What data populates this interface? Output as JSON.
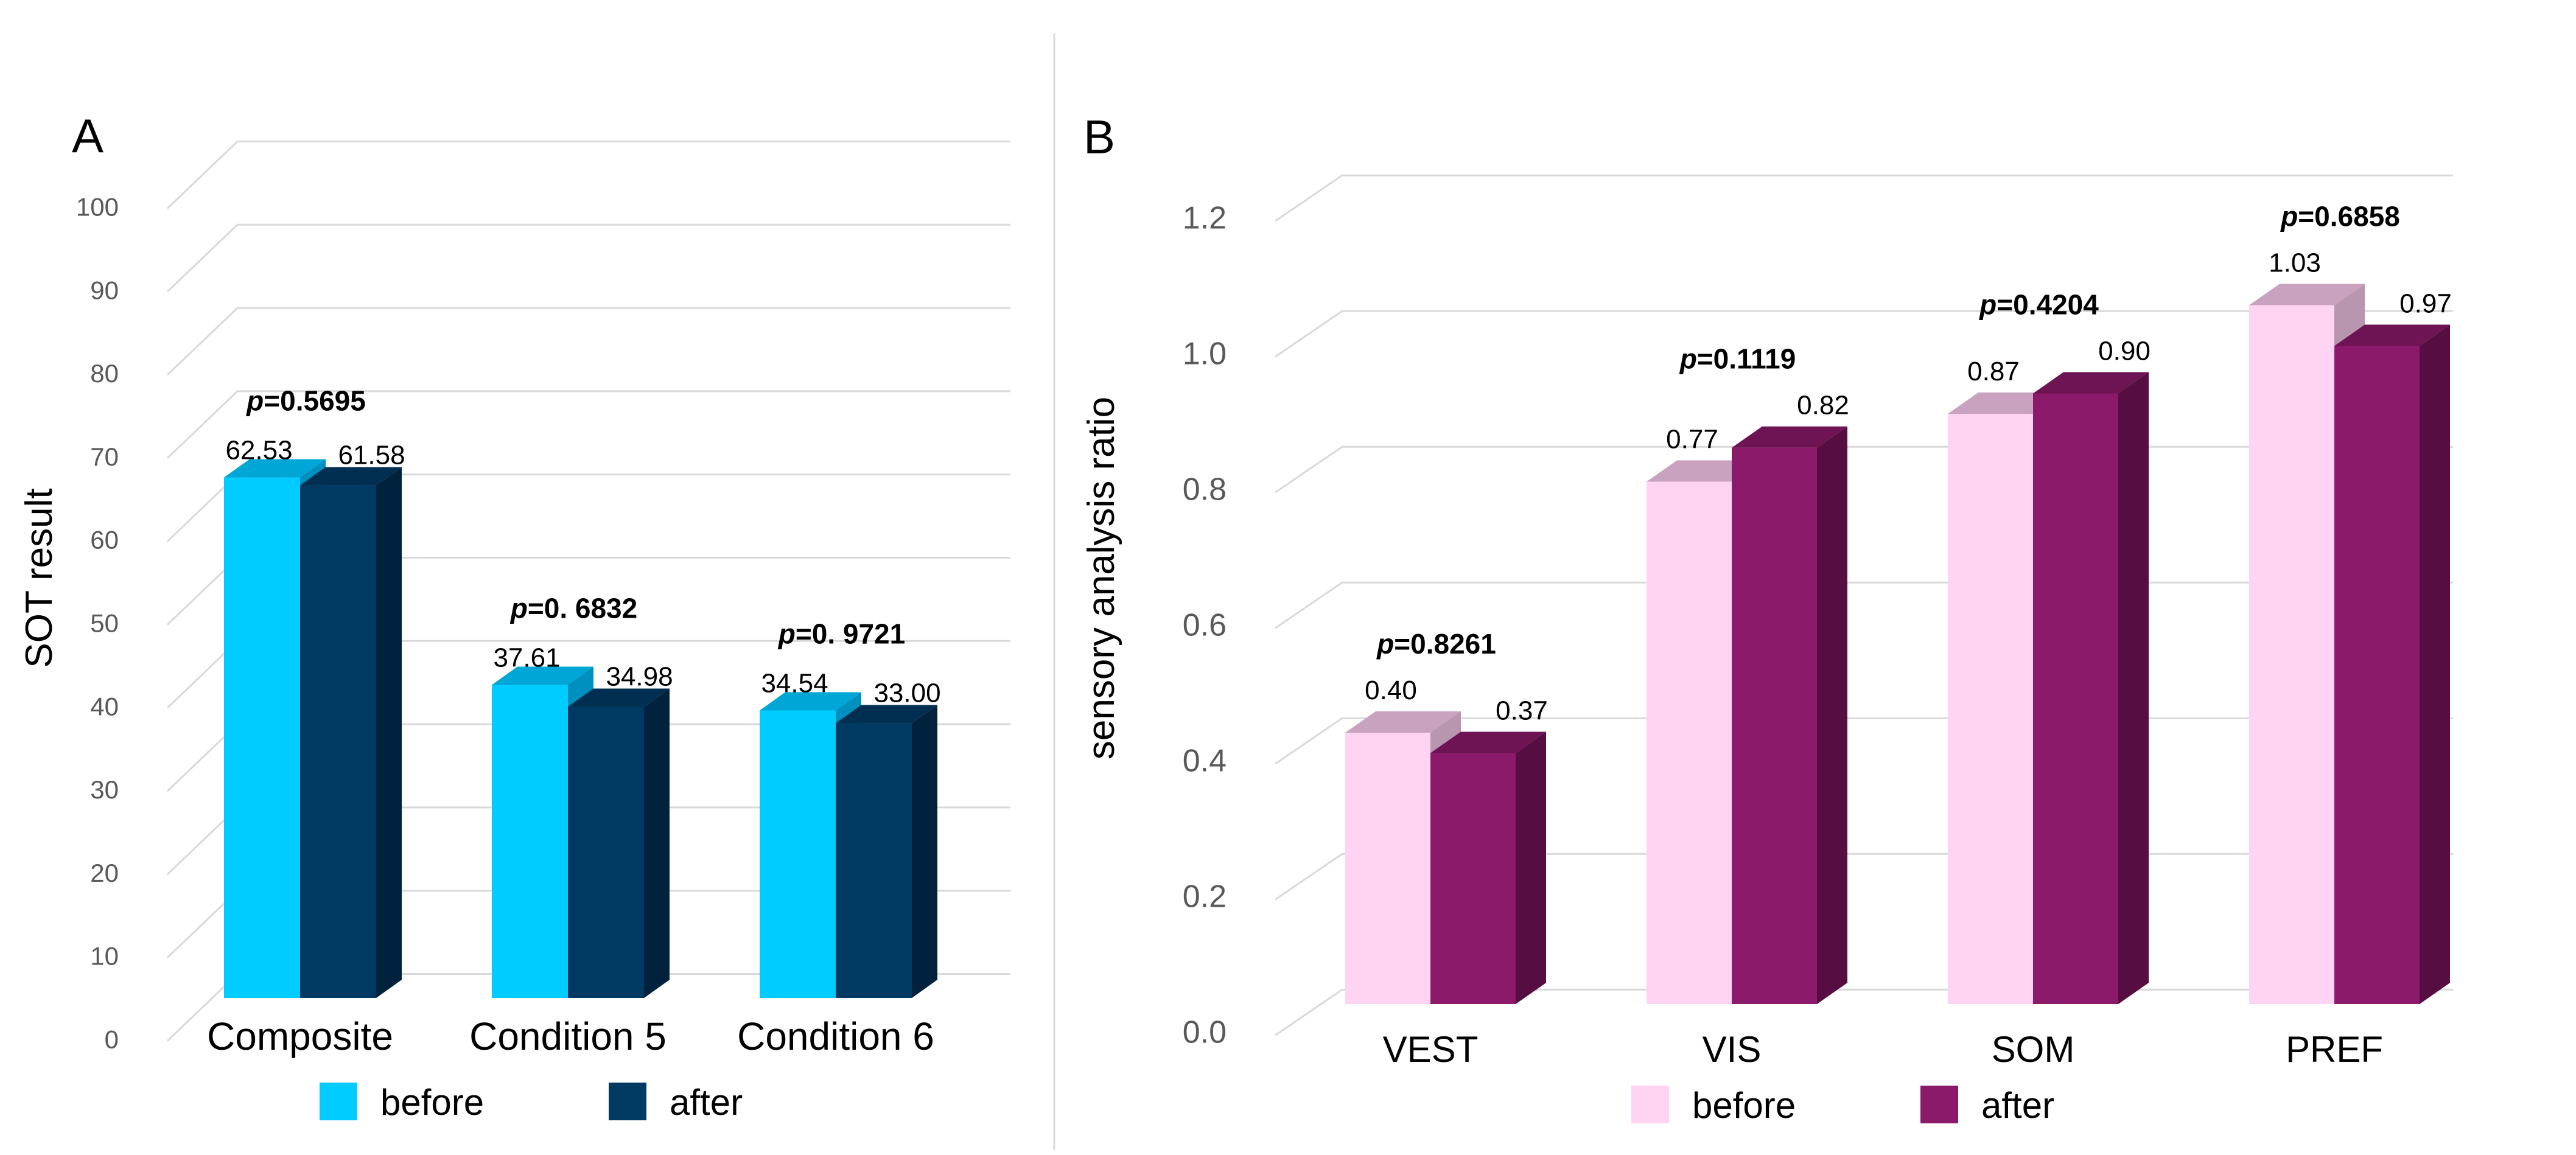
{
  "chart_data": [
    {
      "type": "bar",
      "panel_label": "A",
      "title": "",
      "xlabel": "",
      "ylabel": "SOT result",
      "ylim": [
        0,
        100
      ],
      "yticks": [
        "0",
        "10",
        "20",
        "30",
        "40",
        "50",
        "60",
        "70",
        "80",
        "90",
        "100"
      ],
      "categories": [
        "Composite",
        "Condition 5",
        "Condition 6"
      ],
      "series": [
        {
          "name": "before",
          "values": [
            62.53,
            37.61,
            34.54
          ],
          "labels": [
            "62.53",
            "37.61",
            "34.54"
          ],
          "color": "#00CCFF",
          "top_color": "#00A6D6",
          "side_color": "#0090C0"
        },
        {
          "name": "after",
          "values": [
            61.58,
            34.98,
            33.0
          ],
          "labels": [
            "61.58",
            "34.98",
            "33.00"
          ],
          "color": "#003A63",
          "top_color": "#002F52",
          "side_color": "#00223D"
        }
      ],
      "p_values": [
        "0.5695",
        "0. 6832",
        "0. 9721"
      ],
      "p_prefix": "p",
      "legend": [
        "before",
        "after"
      ],
      "grid": true
    },
    {
      "type": "bar",
      "panel_label": "B",
      "title": "",
      "xlabel": "",
      "ylabel": "sensory analysis ratio",
      "ylim": [
        0,
        1.2
      ],
      "yticks": [
        "0.0",
        "0.2",
        "0.4",
        "0.6",
        "0.8",
        "1.0",
        "1.2"
      ],
      "categories": [
        "VEST",
        "VIS",
        "SOM",
        "PREF"
      ],
      "series": [
        {
          "name": "before",
          "values": [
            0.4,
            0.77,
            0.87,
            1.03
          ],
          "labels": [
            "0.40",
            "0.77",
            "0.87",
            "1.03"
          ],
          "color": "#FFD3F2",
          "top_color": "#C8A2BE",
          "side_color": "#B896B0"
        },
        {
          "name": "after",
          "values": [
            0.37,
            0.82,
            0.9,
            0.97
          ],
          "labels": [
            "0.37",
            "0.82",
            "0.90",
            "0.97"
          ],
          "color": "#8C1A6A",
          "top_color": "#6E1454",
          "side_color": "#560E42"
        }
      ],
      "p_values": [
        "0.8261",
        "0.1119",
        "0.4204",
        "0.6858"
      ],
      "p_prefix": "p",
      "legend": [
        "before",
        "after"
      ],
      "grid": true
    }
  ]
}
